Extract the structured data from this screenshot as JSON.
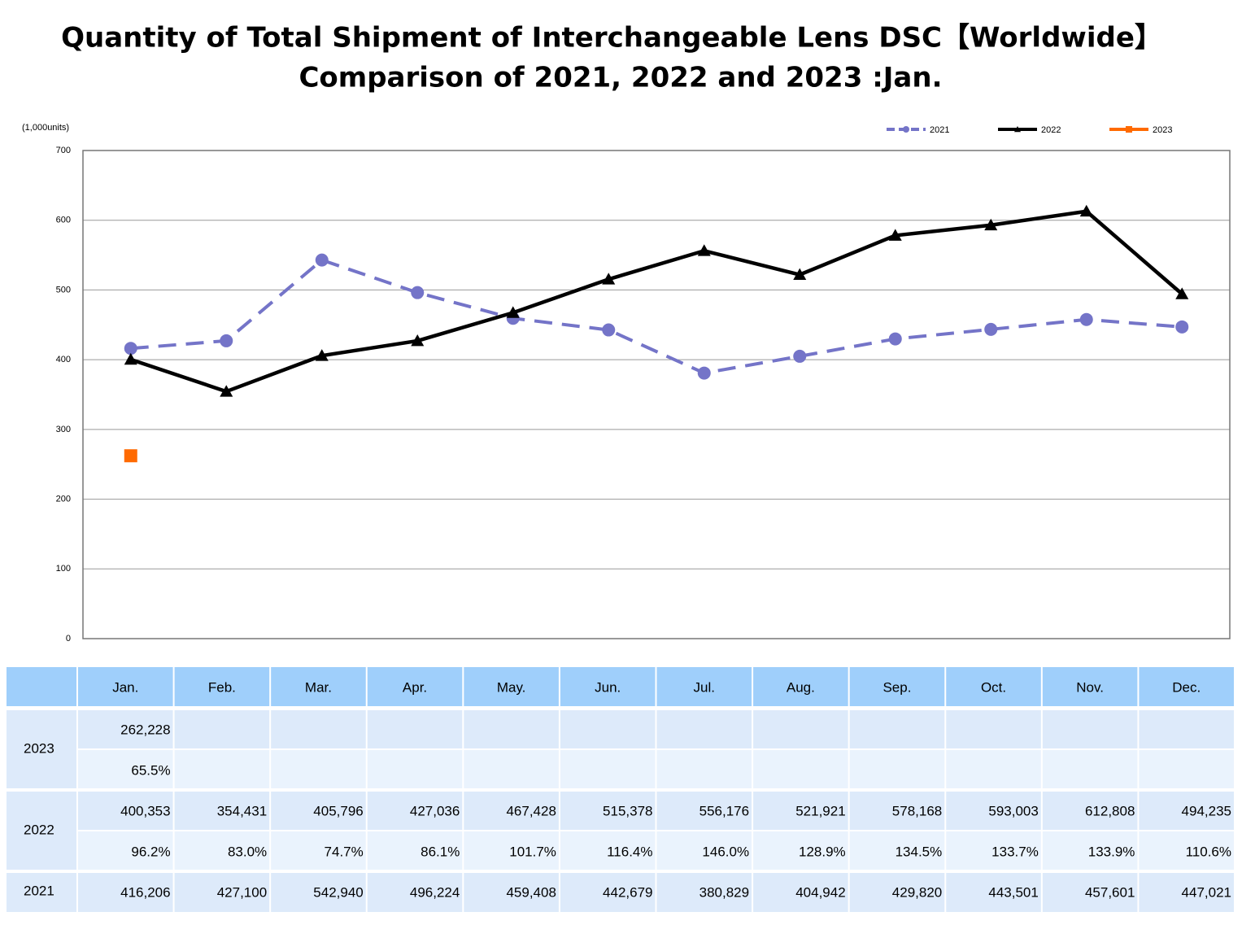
{
  "chart_data": {
    "type": "line",
    "title": "Quantity of Total Shipment of Interchangeable Lens DSC【Worldwide】",
    "subtitle": "Comparison of 2021, 2022 and 2023 :Jan.",
    "ylabel": "(1,000units)",
    "categories": [
      "Jan.",
      "Feb.",
      "Mar.",
      "Apr.",
      "May.",
      "Jun.",
      "Jul.",
      "Aug.",
      "Sep.",
      "Oct.",
      "Nov.",
      "Dec."
    ],
    "series": [
      {
        "name": "2021",
        "color": "#7474c8",
        "dashed": true,
        "marker": "circle",
        "values": [
          416.206,
          427.1,
          542.94,
          496.224,
          459.408,
          442.679,
          380.829,
          404.942,
          429.82,
          443.501,
          457.601,
          447.021
        ]
      },
      {
        "name": "2022",
        "color": "#000000",
        "dashed": false,
        "marker": "triangle",
        "values": [
          400.353,
          354.431,
          405.796,
          427.036,
          467.428,
          515.378,
          556.176,
          521.921,
          578.168,
          593.003,
          612.808,
          494.235
        ]
      },
      {
        "name": "2023",
        "color": "#ff6a00",
        "dashed": false,
        "marker": "square",
        "values": [
          262.228,
          null,
          null,
          null,
          null,
          null,
          null,
          null,
          null,
          null,
          null,
          null
        ]
      }
    ],
    "ylim": [
      0,
      700
    ],
    "yticks": [
      0,
      100,
      200,
      300,
      400,
      500,
      600,
      700
    ],
    "grid": true,
    "legend": "top-right"
  },
  "table": {
    "rows": [
      {
        "label": "2023",
        "values": [
          "262,228"
        ],
        "ratios": [
          "65.5%"
        ]
      },
      {
        "label": "2022",
        "values": [
          "400,353",
          "354,431",
          "405,796",
          "427,036",
          "467,428",
          "515,378",
          "556,176",
          "521,921",
          "578,168",
          "593,003",
          "612,808",
          "494,235"
        ],
        "ratios": [
          "96.2%",
          "83.0%",
          "74.7%",
          "86.1%",
          "101.7%",
          "116.4%",
          "146.0%",
          "128.9%",
          "134.5%",
          "133.7%",
          "133.9%",
          "110.6%"
        ]
      },
      {
        "label": "2021",
        "values": [
          "416,206",
          "427,100",
          "542,940",
          "496,224",
          "459,408",
          "442,679",
          "380,829",
          "404,942",
          "429,820",
          "443,501",
          "457,601",
          "447,021"
        ]
      }
    ]
  }
}
